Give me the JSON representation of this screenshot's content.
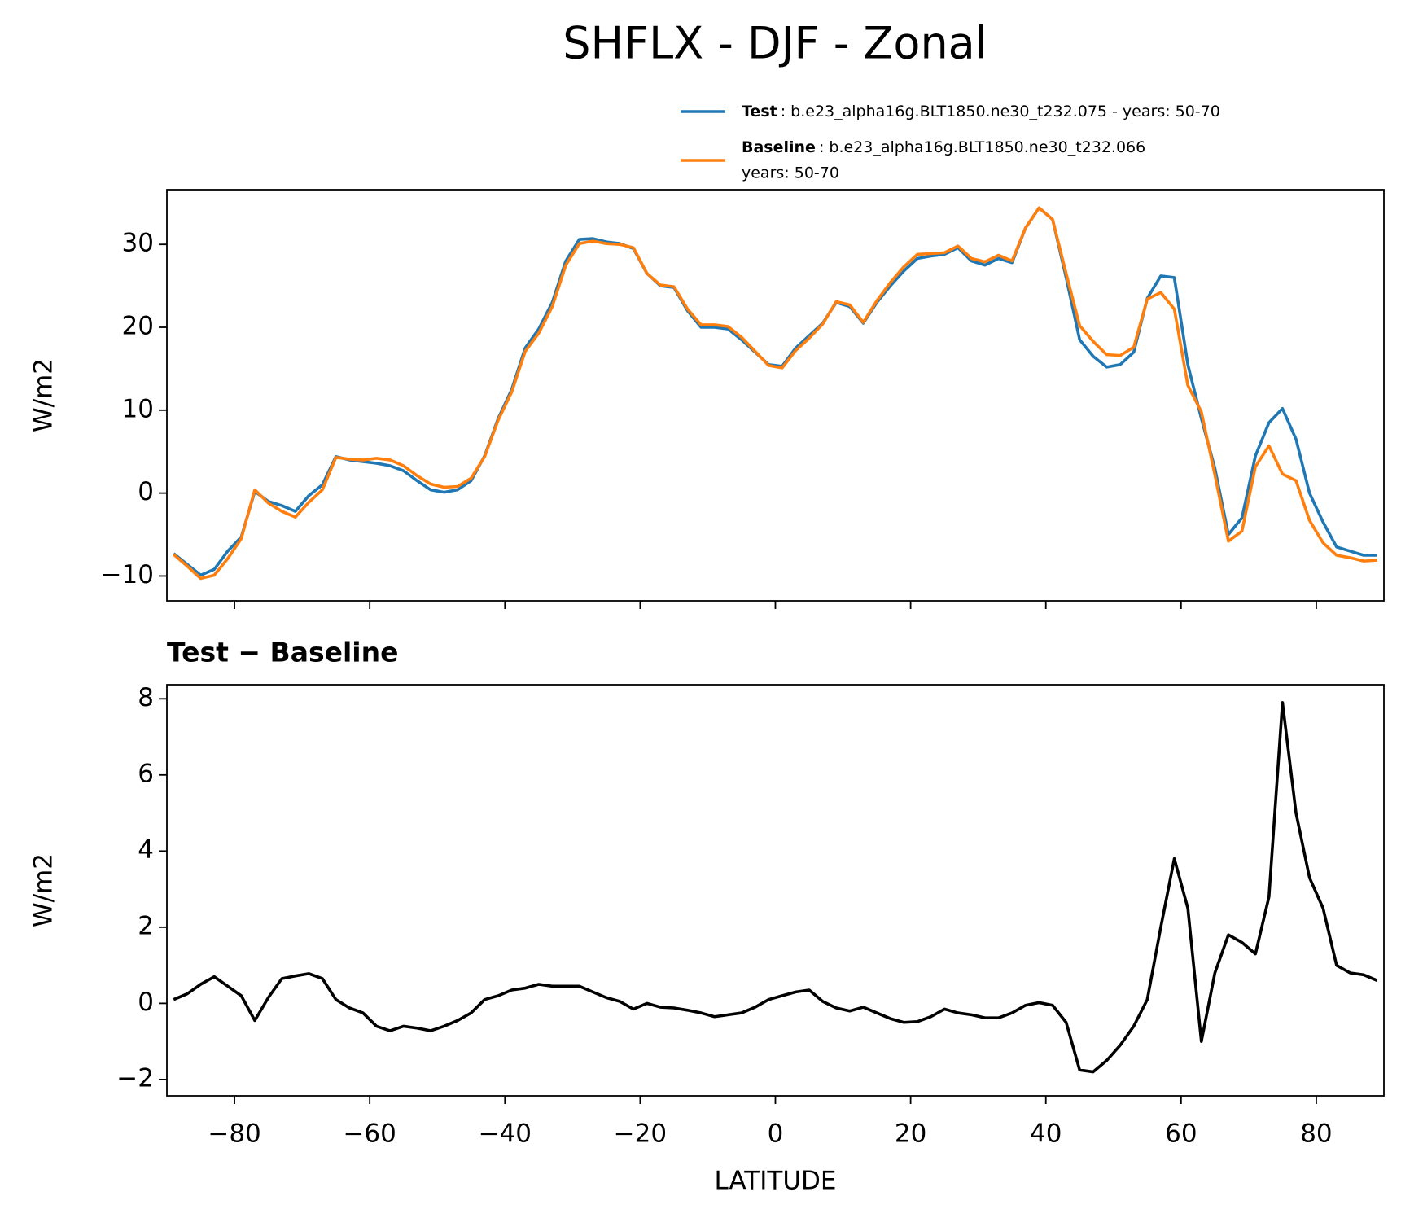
{
  "title": "SHFLX - DJF - Zonal",
  "chart_data": [
    {
      "type": "line",
      "ylabel": "W/m2",
      "legend": "above",
      "show_xticklabels": false,
      "xlim": [
        -90,
        90
      ],
      "ylim": [
        -13,
        36.6
      ],
      "xticks": [
        {
          "value": -80,
          "label": "−80"
        },
        {
          "value": -60,
          "label": "−60"
        },
        {
          "value": -40,
          "label": "−40"
        },
        {
          "value": -20,
          "label": "−20"
        },
        0,
        20,
        40,
        60,
        80
      ],
      "yticks": [
        {
          "value": -10,
          "label": "−10"
        },
        0,
        10,
        20,
        30
      ],
      "x": [
        -89,
        -87,
        -85,
        -83,
        -81,
        -79,
        -77,
        -75,
        -73,
        -71,
        -69,
        -67,
        -65,
        -63,
        -61,
        -59,
        -57,
        -55,
        -53,
        -51,
        -49,
        -47,
        -45,
        -43,
        -41,
        -39,
        -37,
        -35,
        -33,
        -31,
        -29,
        -27,
        -25,
        -23,
        -21,
        -19,
        -17,
        -15,
        -13,
        -11,
        -9,
        -7,
        -5,
        -3,
        -1,
        1,
        3,
        5,
        7,
        9,
        11,
        13,
        15,
        17,
        19,
        21,
        23,
        25,
        27,
        29,
        31,
        33,
        35,
        37,
        39,
        41,
        43,
        45,
        47,
        49,
        51,
        53,
        55,
        57,
        59,
        61,
        63,
        65,
        67,
        69,
        71,
        73,
        75,
        77,
        79,
        81,
        83,
        85,
        87,
        89
      ],
      "series": [
        {
          "name": "Test",
          "description": [
            ": b.e23_alpha16g.BLT1850.ne30_t232.075 - years: 50-70"
          ],
          "color": "#1f77b4",
          "values": [
            -7.3,
            -8.6,
            -9.9,
            -9.2,
            -7.0,
            -5.3,
            0.2,
            -1.0,
            -1.5,
            -2.2,
            -0.3,
            1.0,
            4.4,
            4.0,
            3.8,
            3.6,
            3.3,
            2.7,
            1.5,
            0.4,
            0.1,
            0.4,
            1.5,
            4.5,
            9.0,
            12.5,
            17.5,
            19.8,
            23.0,
            28.0,
            30.6,
            30.7,
            30.3,
            30.1,
            29.5,
            26.5,
            25.0,
            24.8,
            22.0,
            20.0,
            20.0,
            19.8,
            18.5,
            17.0,
            15.5,
            15.3,
            17.5,
            19.0,
            20.5,
            23.0,
            22.5,
            20.5,
            23.0,
            25.0,
            26.8,
            28.3,
            28.6,
            28.8,
            29.6,
            28.0,
            27.5,
            28.3,
            27.8,
            32.0,
            34.4,
            33.0,
            26.0,
            18.5,
            16.5,
            15.2,
            15.5,
            17.0,
            23.5,
            26.2,
            26.0,
            15.5,
            9.0,
            3.0,
            -5.0,
            -3.0,
            4.5,
            8.5,
            10.2,
            6.5,
            0.0,
            -3.5,
            -6.5,
            -7.0,
            -7.5,
            -7.5
          ]
        },
        {
          "name": "Baseline",
          "description": [
            ": b.e23_alpha16g.BLT1850.ne30_t232.066",
            "years: 50-70"
          ],
          "color": "#ff7f0e",
          "values": [
            -7.4,
            -8.8,
            -10.3,
            -9.9,
            -7.9,
            -5.5,
            0.4,
            -1.2,
            -2.2,
            -2.9,
            -1.1,
            0.4,
            4.3,
            4.1,
            4.0,
            4.2,
            4.0,
            3.3,
            2.1,
            1.1,
            0.7,
            0.8,
            1.8,
            4.4,
            8.8,
            12.2,
            17.1,
            19.3,
            22.5,
            27.5,
            30.1,
            30.4,
            30.1,
            30.0,
            29.6,
            26.5,
            25.1,
            24.9,
            22.2,
            20.3,
            20.3,
            20.1,
            18.8,
            17.1,
            15.4,
            15.1,
            17.2,
            18.7,
            20.4,
            23.1,
            22.7,
            20.6,
            23.2,
            25.4,
            27.3,
            28.8,
            28.9,
            29.0,
            29.8,
            28.3,
            27.9,
            28.7,
            28.0,
            32.0,
            34.4,
            33.0,
            26.5,
            20.2,
            18.3,
            16.7,
            16.6,
            17.6,
            23.4,
            24.2,
            22.2,
            13.0,
            9.8,
            2.2,
            -5.8,
            -4.6,
            3.2,
            5.7,
            2.3,
            1.5,
            -3.3,
            -6.0,
            -7.5,
            -7.8,
            -8.2,
            -8.1
          ]
        }
      ]
    },
    {
      "type": "line",
      "title": "Test − Baseline",
      "ylabel": "W/m2",
      "xlabel": "LATITUDE",
      "show_xticklabels": true,
      "xlim": [
        -90,
        90
      ],
      "ylim": [
        -2.43,
        8.37
      ],
      "xticks": [
        {
          "value": -80,
          "label": "−80"
        },
        {
          "value": -60,
          "label": "−60"
        },
        {
          "value": -40,
          "label": "−40"
        },
        {
          "value": -20,
          "label": "−20"
        },
        0,
        20,
        40,
        60,
        80
      ],
      "yticks": [
        {
          "value": -2,
          "label": "−2"
        },
        0,
        2,
        4,
        6,
        8
      ],
      "x": [
        -89,
        -87,
        -85,
        -83,
        -81,
        -79,
        -77,
        -75,
        -73,
        -71,
        -69,
        -67,
        -65,
        -63,
        -61,
        -59,
        -57,
        -55,
        -53,
        -51,
        -49,
        -47,
        -45,
        -43,
        -41,
        -39,
        -37,
        -35,
        -33,
        -31,
        -29,
        -27,
        -25,
        -23,
        -21,
        -19,
        -17,
        -15,
        -13,
        -11,
        -9,
        -7,
        -5,
        -3,
        -1,
        1,
        3,
        5,
        7,
        9,
        11,
        13,
        15,
        17,
        19,
        21,
        23,
        25,
        27,
        29,
        31,
        33,
        35,
        37,
        39,
        41,
        43,
        45,
        47,
        49,
        51,
        53,
        55,
        57,
        59,
        61,
        63,
        65,
        67,
        69,
        71,
        73,
        75,
        77,
        79,
        81,
        83,
        85,
        87,
        89
      ],
      "series": [
        {
          "color": "#000000",
          "values": [
            0.1,
            0.25,
            0.5,
            0.7,
            0.45,
            0.2,
            -0.45,
            0.15,
            0.65,
            0.72,
            0.78,
            0.65,
            0.1,
            -0.12,
            -0.25,
            -0.6,
            -0.72,
            -0.6,
            -0.65,
            -0.72,
            -0.6,
            -0.45,
            -0.25,
            0.1,
            0.2,
            0.35,
            0.4,
            0.5,
            0.45,
            0.45,
            0.45,
            0.3,
            0.15,
            0.05,
            -0.15,
            0.0,
            -0.1,
            -0.12,
            -0.18,
            -0.25,
            -0.35,
            -0.3,
            -0.25,
            -0.1,
            0.1,
            0.2,
            0.3,
            0.35,
            0.05,
            -0.12,
            -0.2,
            -0.1,
            -0.25,
            -0.4,
            -0.5,
            -0.48,
            -0.35,
            -0.15,
            -0.25,
            -0.3,
            -0.38,
            -0.38,
            -0.25,
            -0.05,
            0.02,
            -0.05,
            -0.5,
            -1.75,
            -1.8,
            -1.5,
            -1.1,
            -0.6,
            0.1,
            2.0,
            3.8,
            2.5,
            -1.0,
            0.8,
            1.8,
            1.6,
            1.3,
            2.8,
            7.9,
            5.0,
            3.3,
            2.5,
            1.0,
            0.8,
            0.75,
            0.6
          ]
        }
      ]
    }
  ]
}
